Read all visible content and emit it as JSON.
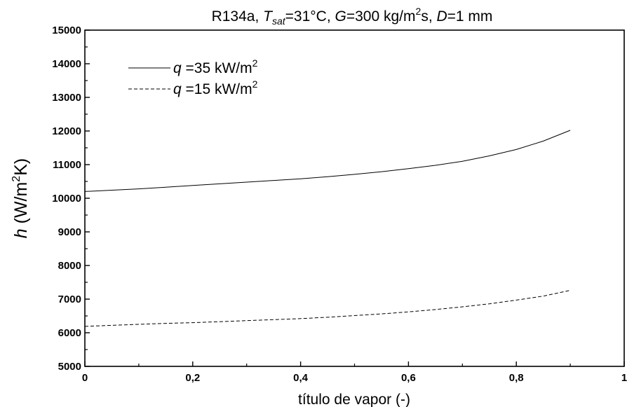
{
  "chart_data": {
    "type": "line",
    "title_parts": {
      "p1": "R134a, ",
      "t_symbol": "T",
      "t_sub": "sat",
      "p2": "=31°C, ",
      "g_symbol": "G",
      "p3": "=300 kg/m",
      "sup": "2",
      "p4": "s, ",
      "d_symbol": "D",
      "p5": "=1 mm"
    },
    "xlabel": "título de vapor (-)",
    "ylabel_parts": {
      "h": "h",
      "open": " (W/m",
      "sup": "2",
      "close": "K)"
    },
    "xlim": [
      0,
      1
    ],
    "ylim": [
      5000,
      15000
    ],
    "x_ticks": [
      0,
      0.2,
      0.4,
      0.6,
      0.8,
      1
    ],
    "x_tick_labels": [
      "0",
      "0,2",
      "0,4",
      "0,6",
      "0,8",
      "1"
    ],
    "y_ticks": [
      5000,
      6000,
      7000,
      8000,
      9000,
      10000,
      11000,
      12000,
      13000,
      14000,
      15000
    ],
    "y_tick_labels": [
      "5000",
      "6000",
      "7000",
      "8000",
      "9000",
      "10000",
      "11000",
      "12000",
      "13000",
      "14000",
      "15000"
    ],
    "grid": false,
    "legend_position": "top-left",
    "series": [
      {
        "legend": {
          "q": "q",
          "text": " =35 kW/m",
          "sup": "2"
        },
        "style": "solid",
        "x": [
          0,
          0.05,
          0.1,
          0.15,
          0.2,
          0.25,
          0.3,
          0.35,
          0.4,
          0.45,
          0.5,
          0.55,
          0.6,
          0.65,
          0.7,
          0.75,
          0.8,
          0.85,
          0.9
        ],
        "y": [
          10200,
          10240,
          10280,
          10330,
          10380,
          10430,
          10480,
          10530,
          10580,
          10640,
          10710,
          10790,
          10880,
          10980,
          11100,
          11260,
          11450,
          11700,
          12020
        ]
      },
      {
        "legend": {
          "q": "q",
          "text": " =15 kW/m",
          "sup": "2"
        },
        "style": "dashed",
        "x": [
          0,
          0.05,
          0.1,
          0.15,
          0.2,
          0.25,
          0.3,
          0.35,
          0.4,
          0.45,
          0.5,
          0.55,
          0.6,
          0.65,
          0.7,
          0.75,
          0.8,
          0.85,
          0.9
        ],
        "y": [
          6190,
          6220,
          6250,
          6280,
          6300,
          6330,
          6360,
          6390,
          6420,
          6460,
          6510,
          6560,
          6620,
          6690,
          6770,
          6860,
          6970,
          7090,
          7260
        ]
      }
    ]
  }
}
